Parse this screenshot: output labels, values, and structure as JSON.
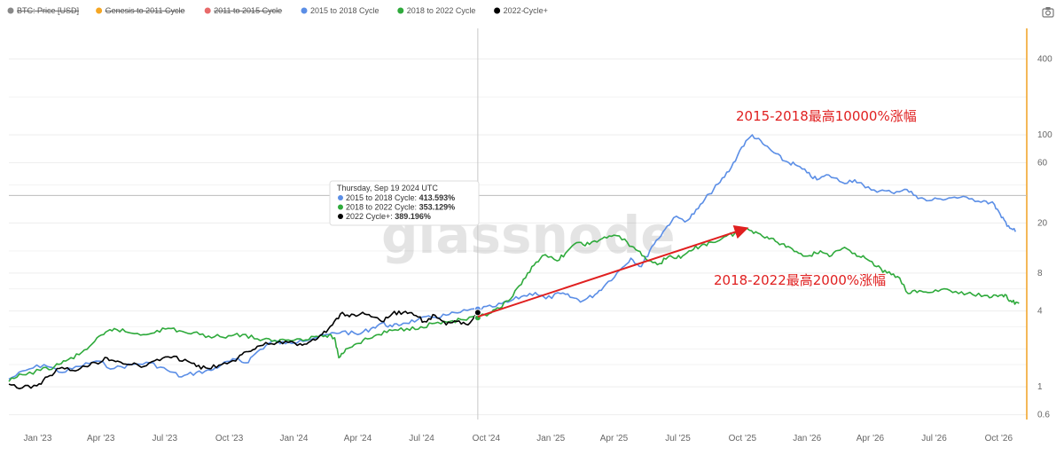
{
  "legend": [
    {
      "name": "BTC: Price [USD]",
      "color": "#888888",
      "disabled": true
    },
    {
      "name": "Genesis to 2011 Cycle",
      "color": "#f5a623",
      "disabled": true
    },
    {
      "name": "2011 to 2015 Cycle",
      "color": "#e86a6a",
      "disabled": true
    },
    {
      "name": "2015 to 2018 Cycle",
      "color": "#5b8ee6",
      "disabled": false
    },
    {
      "name": "2018 to 2022 Cycle",
      "color": "#2faa3c",
      "disabled": false
    },
    {
      "name": "2022 Cycle+",
      "color": "#000000",
      "disabled": false
    }
  ],
  "legend_extra": "-",
  "camera_icon": "camera-icon",
  "watermark": "glassnode",
  "tooltip": {
    "date": "Thursday, Sep 19 2024 UTC",
    "rows": [
      {
        "label": "2015 to 2018 Cycle:",
        "value": "413.593%",
        "color": "#5b8ee6"
      },
      {
        "label": "2018 to 2022 Cycle:",
        "value": "353.129%",
        "color": "#2faa3c"
      },
      {
        "label": "2022 Cycle+:",
        "value": "389.196%",
        "color": "#000000"
      }
    ]
  },
  "annotations": [
    {
      "text": "2015-2018最高10000%涨幅",
      "color": "#e02020"
    },
    {
      "text": "2018-2022最高2000%涨幅",
      "color": "#e02020"
    }
  ],
  "chart_data": {
    "type": "line",
    "y_scale": "log",
    "ylim": [
      0.55,
      700
    ],
    "x_range": [
      "2022-11-21",
      "2026-11-10"
    ],
    "crosshair_date": "2024-09-19",
    "xticks": [
      {
        "label": "Jan '23",
        "date": "2023-01-01"
      },
      {
        "label": "Apr '23",
        "date": "2023-04-01"
      },
      {
        "label": "Jul '23",
        "date": "2023-07-01"
      },
      {
        "label": "Oct '23",
        "date": "2023-10-01"
      },
      {
        "label": "Jan '24",
        "date": "2024-01-01"
      },
      {
        "label": "Apr '24",
        "date": "2024-04-01"
      },
      {
        "label": "Jul '24",
        "date": "2024-07-01"
      },
      {
        "label": "Oct '24",
        "date": "2024-10-01"
      },
      {
        "label": "Jan '25",
        "date": "2025-01-01"
      },
      {
        "label": "Apr '25",
        "date": "2025-04-01"
      },
      {
        "label": "Jul '25",
        "date": "2025-07-01"
      },
      {
        "label": "Oct '25",
        "date": "2025-10-01"
      },
      {
        "label": "Jan '26",
        "date": "2026-01-01"
      },
      {
        "label": "Apr '26",
        "date": "2026-04-01"
      },
      {
        "label": "Jul '26",
        "date": "2026-07-01"
      },
      {
        "label": "Oct '26",
        "date": "2026-10-01"
      }
    ],
    "yticks": [
      400,
      100,
      60,
      20,
      8,
      4,
      1,
      0.6
    ],
    "series": [
      {
        "name": "2015 to 2018 Cycle",
        "color": "#5b8ee6",
        "points": [
          [
            "2022-11-21",
            1.15
          ],
          [
            "2022-12-15",
            1.35
          ],
          [
            "2023-01-10",
            1.5
          ],
          [
            "2023-02-05",
            1.3
          ],
          [
            "2023-03-01",
            1.45
          ],
          [
            "2023-03-25",
            1.6
          ],
          [
            "2023-04-20",
            1.4
          ],
          [
            "2023-05-15",
            1.5
          ],
          [
            "2023-06-10",
            1.55
          ],
          [
            "2023-07-05",
            1.35
          ],
          [
            "2023-07-25",
            1.2
          ],
          [
            "2023-08-15",
            1.3
          ],
          [
            "2023-09-05",
            1.35
          ],
          [
            "2023-09-20",
            1.5
          ],
          [
            "2023-10-10",
            1.65
          ],
          [
            "2023-10-25",
            1.55
          ],
          [
            "2023-11-10",
            1.9
          ],
          [
            "2023-12-01",
            2.3
          ],
          [
            "2023-12-20",
            2.2
          ],
          [
            "2024-01-10",
            2.35
          ],
          [
            "2024-02-01",
            2.45
          ],
          [
            "2024-02-20",
            2.6
          ],
          [
            "2024-03-10",
            2.75
          ],
          [
            "2024-04-01",
            2.6
          ],
          [
            "2024-04-20",
            2.9
          ],
          [
            "2024-05-05",
            3.2
          ],
          [
            "2024-05-20",
            3.0
          ],
          [
            "2024-06-05",
            3.2
          ],
          [
            "2024-06-25",
            3.4
          ],
          [
            "2024-07-15",
            3.55
          ],
          [
            "2024-08-05",
            3.7
          ],
          [
            "2024-08-25",
            3.9
          ],
          [
            "2024-09-19",
            4.14
          ],
          [
            "2024-10-10",
            4.3
          ],
          [
            "2024-11-01",
            4.7
          ],
          [
            "2024-11-20",
            5.2
          ],
          [
            "2024-12-10",
            5.6
          ],
          [
            "2024-12-25",
            5.0
          ],
          [
            "2025-01-15",
            5.5
          ],
          [
            "2025-02-01",
            5.1
          ],
          [
            "2025-02-15",
            4.8
          ],
          [
            "2025-03-05",
            5.4
          ],
          [
            "2025-03-20",
            6.5
          ],
          [
            "2025-04-10",
            8.5
          ],
          [
            "2025-04-25",
            10.5
          ],
          [
            "2025-05-10",
            9.0
          ],
          [
            "2025-05-25",
            13.0
          ],
          [
            "2025-06-10",
            17.0
          ],
          [
            "2025-06-25",
            22.0
          ],
          [
            "2025-07-15",
            21.0
          ],
          [
            "2025-07-30",
            26.0
          ],
          [
            "2025-08-15",
            34.0
          ],
          [
            "2025-08-30",
            42.0
          ],
          [
            "2025-09-15",
            55.0
          ],
          [
            "2025-09-30",
            80.0
          ],
          [
            "2025-10-15",
            100.0
          ],
          [
            "2025-10-30",
            85.0
          ],
          [
            "2025-11-15",
            72.0
          ],
          [
            "2025-11-30",
            62.0
          ],
          [
            "2025-12-15",
            58.0
          ],
          [
            "2026-01-01",
            50.0
          ],
          [
            "2026-01-15",
            44.0
          ],
          [
            "2026-02-01",
            48.0
          ],
          [
            "2026-02-20",
            42.0
          ],
          [
            "2026-03-10",
            44.0
          ],
          [
            "2026-03-25",
            38.0
          ],
          [
            "2026-04-15",
            36.0
          ],
          [
            "2026-05-01",
            35.0
          ],
          [
            "2026-05-20",
            37.0
          ],
          [
            "2026-06-05",
            33.0
          ],
          [
            "2026-06-20",
            30.0
          ],
          [
            "2026-07-10",
            31.0
          ],
          [
            "2026-07-30",
            32.0
          ],
          [
            "2026-08-20",
            31.0
          ],
          [
            "2026-09-10",
            30.0
          ],
          [
            "2026-09-25",
            28.0
          ],
          [
            "2026-10-05",
            22.0
          ],
          [
            "2026-10-15",
            19.0
          ],
          [
            "2026-10-25",
            17.0
          ]
        ]
      },
      {
        "name": "2018 to 2022 Cycle",
        "color": "#2faa3c",
        "points": [
          [
            "2022-11-21",
            1.1
          ],
          [
            "2022-12-10",
            1.25
          ],
          [
            "2023-01-05",
            1.35
          ],
          [
            "2023-01-25",
            1.45
          ],
          [
            "2023-02-10",
            1.6
          ],
          [
            "2023-03-01",
            1.8
          ],
          [
            "2023-03-20",
            2.2
          ],
          [
            "2023-04-05",
            2.6
          ],
          [
            "2023-04-20",
            2.9
          ],
          [
            "2023-05-10",
            2.7
          ],
          [
            "2023-06-01",
            2.6
          ],
          [
            "2023-06-20",
            2.8
          ],
          [
            "2023-07-10",
            2.9
          ],
          [
            "2023-07-30",
            2.7
          ],
          [
            "2023-08-20",
            2.6
          ],
          [
            "2023-09-10",
            2.5
          ],
          [
            "2023-09-30",
            2.55
          ],
          [
            "2023-10-20",
            2.6
          ],
          [
            "2023-11-10",
            2.4
          ],
          [
            "2023-12-01",
            2.3
          ],
          [
            "2023-12-20",
            2.35
          ],
          [
            "2024-01-10",
            2.4
          ],
          [
            "2024-01-30",
            2.5
          ],
          [
            "2024-02-15",
            2.55
          ],
          [
            "2024-02-28",
            2.45
          ],
          [
            "2024-03-05",
            1.7
          ],
          [
            "2024-03-15",
            2.0
          ],
          [
            "2024-03-30",
            2.2
          ],
          [
            "2024-04-15",
            2.4
          ],
          [
            "2024-05-01",
            2.6
          ],
          [
            "2024-05-20",
            2.8
          ],
          [
            "2024-06-10",
            2.9
          ],
          [
            "2024-06-30",
            3.0
          ],
          [
            "2024-07-20",
            3.2
          ],
          [
            "2024-08-10",
            3.3
          ],
          [
            "2024-08-30",
            3.4
          ],
          [
            "2024-09-19",
            3.53
          ],
          [
            "2024-10-05",
            3.8
          ],
          [
            "2024-10-20",
            4.2
          ],
          [
            "2024-11-05",
            5.0
          ],
          [
            "2024-11-20",
            6.5
          ],
          [
            "2024-12-05",
            9.0
          ],
          [
            "2024-12-20",
            11.0
          ],
          [
            "2025-01-10",
            10.0
          ],
          [
            "2025-01-25",
            12.0
          ],
          [
            "2025-02-10",
            14.0
          ],
          [
            "2025-02-25",
            13.5
          ],
          [
            "2025-03-15",
            15.0
          ],
          [
            "2025-04-01",
            16.0
          ],
          [
            "2025-04-20",
            14.0
          ],
          [
            "2025-05-05",
            12.0
          ],
          [
            "2025-05-20",
            10.0
          ],
          [
            "2025-06-05",
            9.5
          ],
          [
            "2025-06-20",
            11.0
          ],
          [
            "2025-07-05",
            10.5
          ],
          [
            "2025-07-20",
            12.0
          ],
          [
            "2025-08-05",
            13.5
          ],
          [
            "2025-08-20",
            14.0
          ],
          [
            "2025-09-05",
            15.5
          ],
          [
            "2025-09-20",
            16.5
          ],
          [
            "2025-10-05",
            18.0
          ],
          [
            "2025-10-20",
            17.0
          ],
          [
            "2025-11-05",
            15.5
          ],
          [
            "2025-11-20",
            14.0
          ],
          [
            "2025-12-05",
            13.0
          ],
          [
            "2025-12-20",
            11.5
          ],
          [
            "2026-01-05",
            11.0
          ],
          [
            "2026-01-20",
            12.0
          ],
          [
            "2026-02-05",
            11.0
          ],
          [
            "2026-02-20",
            12.5
          ],
          [
            "2026-03-10",
            11.5
          ],
          [
            "2026-03-25",
            10.5
          ],
          [
            "2026-04-10",
            9.0
          ],
          [
            "2026-04-25",
            8.0
          ],
          [
            "2026-05-10",
            7.5
          ],
          [
            "2026-05-25",
            5.5
          ],
          [
            "2026-06-10",
            5.8
          ],
          [
            "2026-06-25",
            5.6
          ],
          [
            "2026-07-15",
            6.0
          ],
          [
            "2026-08-05",
            5.5
          ],
          [
            "2026-08-25",
            5.4
          ],
          [
            "2026-09-15",
            5.3
          ],
          [
            "2026-09-30",
            5.2
          ],
          [
            "2026-10-10",
            5.4
          ],
          [
            "2026-10-20",
            4.7
          ],
          [
            "2026-10-30",
            4.6
          ]
        ]
      },
      {
        "name": "2022 Cycle+",
        "color": "#000000",
        "points": [
          [
            "2022-11-21",
            1.05
          ],
          [
            "2022-12-10",
            0.98
          ],
          [
            "2022-12-31",
            1.02
          ],
          [
            "2023-01-15",
            1.2
          ],
          [
            "2023-02-01",
            1.4
          ],
          [
            "2023-02-20",
            1.35
          ],
          [
            "2023-03-10",
            1.45
          ],
          [
            "2023-03-25",
            1.55
          ],
          [
            "2023-04-10",
            1.7
          ],
          [
            "2023-04-25",
            1.6
          ],
          [
            "2023-05-15",
            1.5
          ],
          [
            "2023-06-01",
            1.45
          ],
          [
            "2023-06-20",
            1.65
          ],
          [
            "2023-07-10",
            1.7
          ],
          [
            "2023-07-30",
            1.65
          ],
          [
            "2023-08-15",
            1.45
          ],
          [
            "2023-09-01",
            1.4
          ],
          [
            "2023-09-20",
            1.5
          ],
          [
            "2023-10-10",
            1.6
          ],
          [
            "2023-10-25",
            1.9
          ],
          [
            "2023-11-10",
            2.1
          ],
          [
            "2023-11-30",
            2.2
          ],
          [
            "2023-12-20",
            2.3
          ],
          [
            "2024-01-10",
            2.2
          ],
          [
            "2024-01-25",
            2.3
          ],
          [
            "2024-02-10",
            2.6
          ],
          [
            "2024-02-25",
            3.1
          ],
          [
            "2024-03-10",
            3.9
          ],
          [
            "2024-03-20",
            3.6
          ],
          [
            "2024-04-05",
            3.8
          ],
          [
            "2024-04-20",
            3.6
          ],
          [
            "2024-05-05",
            3.3
          ],
          [
            "2024-05-20",
            3.8
          ],
          [
            "2024-06-05",
            3.9
          ],
          [
            "2024-06-20",
            3.7
          ],
          [
            "2024-07-05",
            3.3
          ],
          [
            "2024-07-20",
            3.7
          ],
          [
            "2024-08-05",
            3.1
          ],
          [
            "2024-08-20",
            3.3
          ],
          [
            "2024-09-05",
            3.1
          ],
          [
            "2024-09-19",
            3.89
          ]
        ]
      }
    ],
    "arrow": {
      "from": [
        "2024-09-19",
        3.6
      ],
      "to": [
        "2025-10-05",
        18.0
      ],
      "color": "#e02020"
    }
  }
}
